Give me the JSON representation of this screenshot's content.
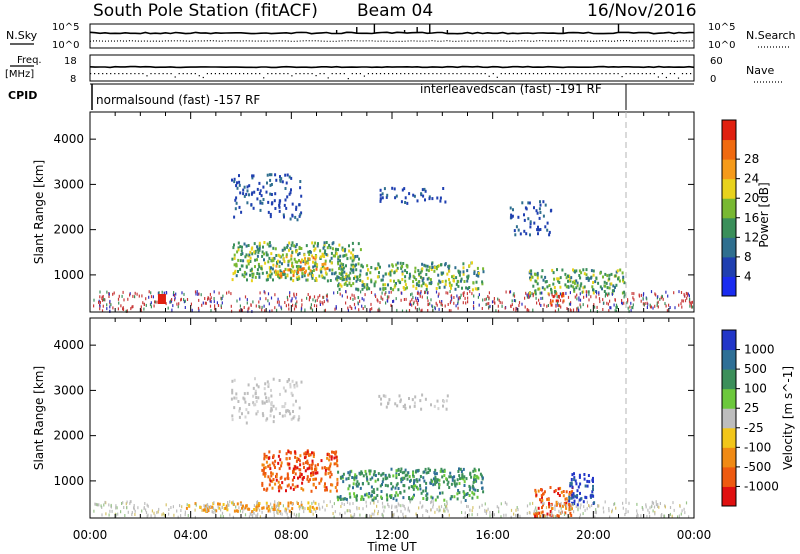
{
  "header": {
    "title": "South Pole Station (fitACF)",
    "beam": "Beam 04",
    "date": "16/Nov/2016"
  },
  "panels": {
    "nsky": {
      "label": "N.Sky",
      "right_label": "N.Search",
      "ticks_left": [
        "10^5",
        "10^0"
      ],
      "ticks_right": [
        "10^5",
        "10^0"
      ]
    },
    "freq": {
      "label_line1": "Freq.",
      "label_line2": "[MHz]",
      "right_label": "Nave",
      "ticks_left": [
        "18",
        "8"
      ],
      "ticks_right": [
        "60",
        "0"
      ]
    },
    "cpid": {
      "label": "CPID",
      "segments": [
        {
          "text": "normalsound (fast) -157 RF",
          "start_hour": 0
        },
        {
          "text": "interleavedscan (fast) -191 RF",
          "start_hour": 21.2
        }
      ]
    }
  },
  "colorbars": {
    "power": {
      "label": "Power [dB]",
      "ticks": [
        "4",
        "8",
        "12",
        "16",
        "20",
        "24",
        "28"
      ],
      "colors": [
        "#1a2cf0",
        "#1f3fb0",
        "#2f6f8f",
        "#3a8f5a",
        "#78b832",
        "#e8d21c",
        "#f59a1a",
        "#f06a10",
        "#e02010"
      ]
    },
    "velocity": {
      "label": "Velocity [m s^-1]",
      "ticks": [
        "1000",
        "500",
        "100",
        "25",
        "-25",
        "-100",
        "-500",
        "-1000"
      ],
      "colors": [
        "#2236c8",
        "#2e6f96",
        "#3c8f5a",
        "#6cc83c",
        "#bdbdbd",
        "#f2c61a",
        "#f08a14",
        "#ee5a10",
        "#e01010"
      ]
    }
  },
  "chart_data": [
    {
      "type": "heatmap",
      "title": "",
      "xlabel": "",
      "ylabel": "Slant Range [km]",
      "x_ticks": [
        "00:00",
        "04:00",
        "08:00",
        "12:00",
        "16:00",
        "20:00",
        "00:00"
      ],
      "y_ticks": [
        "1000",
        "2000",
        "3000",
        "4000"
      ],
      "xlim_hours": [
        0,
        24
      ],
      "ylim_km": [
        180,
        4600
      ],
      "colorbar": "Power [dB]",
      "regions": [
        {
          "h0": 5.6,
          "h1": 8.4,
          "r0": 2250,
          "r1": 3250,
          "value": "low"
        },
        {
          "h0": 11.4,
          "h1": 14.2,
          "r0": 2600,
          "r1": 2950,
          "value": "low"
        },
        {
          "h0": 16.6,
          "h1": 18.3,
          "r0": 1900,
          "r1": 2650,
          "value": "low"
        },
        {
          "h0": 5.6,
          "h1": 10.8,
          "r0": 900,
          "r1": 1750,
          "value": "mid"
        },
        {
          "h0": 9.8,
          "h1": 15.6,
          "r0": 700,
          "r1": 1300,
          "value": "mid"
        },
        {
          "h0": 17.4,
          "h1": 21.2,
          "r0": 600,
          "r1": 1150,
          "value": "mid"
        },
        {
          "h0": 7.2,
          "h1": 9.4,
          "r0": 1000,
          "r1": 1500,
          "value": "high"
        },
        {
          "h0": 18.2,
          "h1": 18.8,
          "r0": 350,
          "r1": 620,
          "value": "peak"
        }
      ]
    },
    {
      "type": "heatmap",
      "title": "",
      "xlabel": "Time UT",
      "ylabel": "Slant Range [km]",
      "x_ticks": [
        "00:00",
        "04:00",
        "08:00",
        "12:00",
        "16:00",
        "20:00",
        "00:00"
      ],
      "y_ticks": [
        "1000",
        "2000",
        "3000",
        "4000"
      ],
      "xlim_hours": [
        0,
        24
      ],
      "ylim_km": [
        180,
        4600
      ],
      "colorbar": "Velocity [m s^-1]",
      "regions": [
        {
          "h0": 5.6,
          "h1": 8.4,
          "r0": 2300,
          "r1": 3300,
          "value": "~0"
        },
        {
          "h0": 11.4,
          "h1": 14.2,
          "r0": 2600,
          "r1": 2950,
          "value": "~0"
        },
        {
          "h0": 6.8,
          "h1": 9.8,
          "r0": 800,
          "r1": 1700,
          "value": "-500"
        },
        {
          "h0": 3.8,
          "h1": 9.0,
          "r0": 350,
          "r1": 550,
          "value": "-100"
        },
        {
          "h0": 9.8,
          "h1": 15.6,
          "r0": 600,
          "r1": 1300,
          "value": "+100"
        },
        {
          "h0": 17.6,
          "h1": 19.2,
          "r0": 250,
          "r1": 900,
          "value": "-500"
        },
        {
          "h0": 19.0,
          "h1": 20.0,
          "r0": 500,
          "r1": 1200,
          "value": "+500"
        }
      ]
    }
  ]
}
